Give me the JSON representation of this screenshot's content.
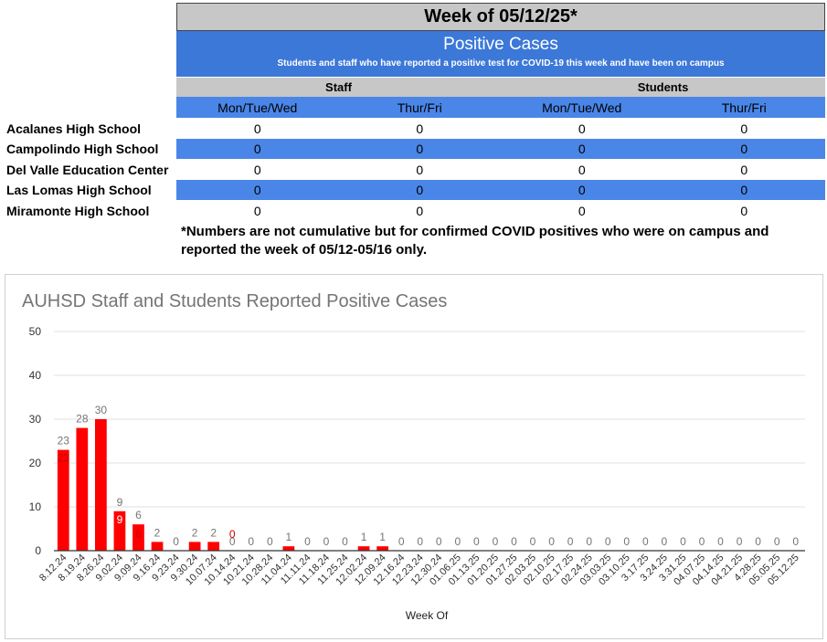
{
  "table": {
    "week_title": "Week of 05/12/25*",
    "positive_title": "Positive Cases",
    "positive_subtitle": "Students and staff who have reported a positive test for COVID-19 this week and have been on campus",
    "groups": [
      "Staff",
      "Students"
    ],
    "columns": [
      "Mon/Tue/Wed",
      "Thur/Fri",
      "Mon/Tue/Wed",
      "Thur/Fri"
    ],
    "rows": [
      {
        "school": "Acalanes High School",
        "values": [
          "0",
          "0",
          "0",
          "0"
        ]
      },
      {
        "school": "Campolindo High School",
        "values": [
          "0",
          "0",
          "0",
          "0"
        ]
      },
      {
        "school": "Del Valle Education Center",
        "values": [
          "0",
          "0",
          "0",
          "0"
        ]
      },
      {
        "school": "Las Lomas High School",
        "values": [
          "0",
          "0",
          "0",
          "0"
        ]
      },
      {
        "school": "Miramonte High School",
        "values": [
          "0",
          "0",
          "0",
          "0"
        ]
      }
    ],
    "footnote": "*Numbers are not cumulative but for confirmed COVID positives who were on campus and reported the week of 05/12-05/16 only."
  },
  "chart_data": {
    "type": "bar",
    "title": "AUHSD Staff and Students Reported Positive Cases",
    "xlabel": "Week Of",
    "ylabel": "",
    "ylim": [
      0,
      50
    ],
    "yticks": [
      "0",
      "10",
      "20",
      "30",
      "40",
      "50"
    ],
    "grid": true,
    "categories": [
      "8.12.24",
      "8.19.24",
      "8.26.24",
      "9.02.24",
      "9.09.24",
      "9.16.24",
      "9.23.24",
      "9.30.24",
      "10.07.24",
      "10.14.24",
      "10.21.24",
      "10.28.24",
      "11.04.24",
      "11.11.24",
      "11.18.24",
      "11.25.24",
      "12.02.24",
      "12.09.24",
      "12.16.24",
      "12.23.24",
      "12.30.24",
      "01.06.25",
      "01.13.25",
      "01.20.25",
      "01.27.25",
      "02.03.25",
      "02.10.25",
      "02.17.25",
      "02.24.25",
      "03.03.25",
      "03.10.25",
      "3.17.25",
      "3.24.25",
      "3.31.25",
      "04.07.25",
      "04.14.25",
      "04.21.25",
      "4.28.25",
      "05.05.25",
      "05.12.25"
    ],
    "values": [
      23,
      28,
      30,
      9,
      6,
      2,
      0,
      2,
      2,
      0,
      0,
      0,
      1,
      0,
      0,
      0,
      1,
      1,
      0,
      0,
      0,
      0,
      0,
      0,
      0,
      0,
      0,
      0,
      0,
      0,
      0,
      0,
      0,
      0,
      0,
      0,
      0,
      0,
      0,
      0
    ],
    "inner_labels": [
      {
        "index": 0,
        "text": "23"
      },
      {
        "index": 3,
        "text": "9"
      },
      {
        "index": 4,
        "text": "6"
      },
      {
        "index": 9,
        "text": "0"
      }
    ],
    "colors": {
      "bar": "#ff0000",
      "label": "#757575",
      "inner_label_dark": "#cc0000",
      "inner_label_light": "#ffffff",
      "grid": "#e0e0e0",
      "axis": "#333333"
    }
  }
}
